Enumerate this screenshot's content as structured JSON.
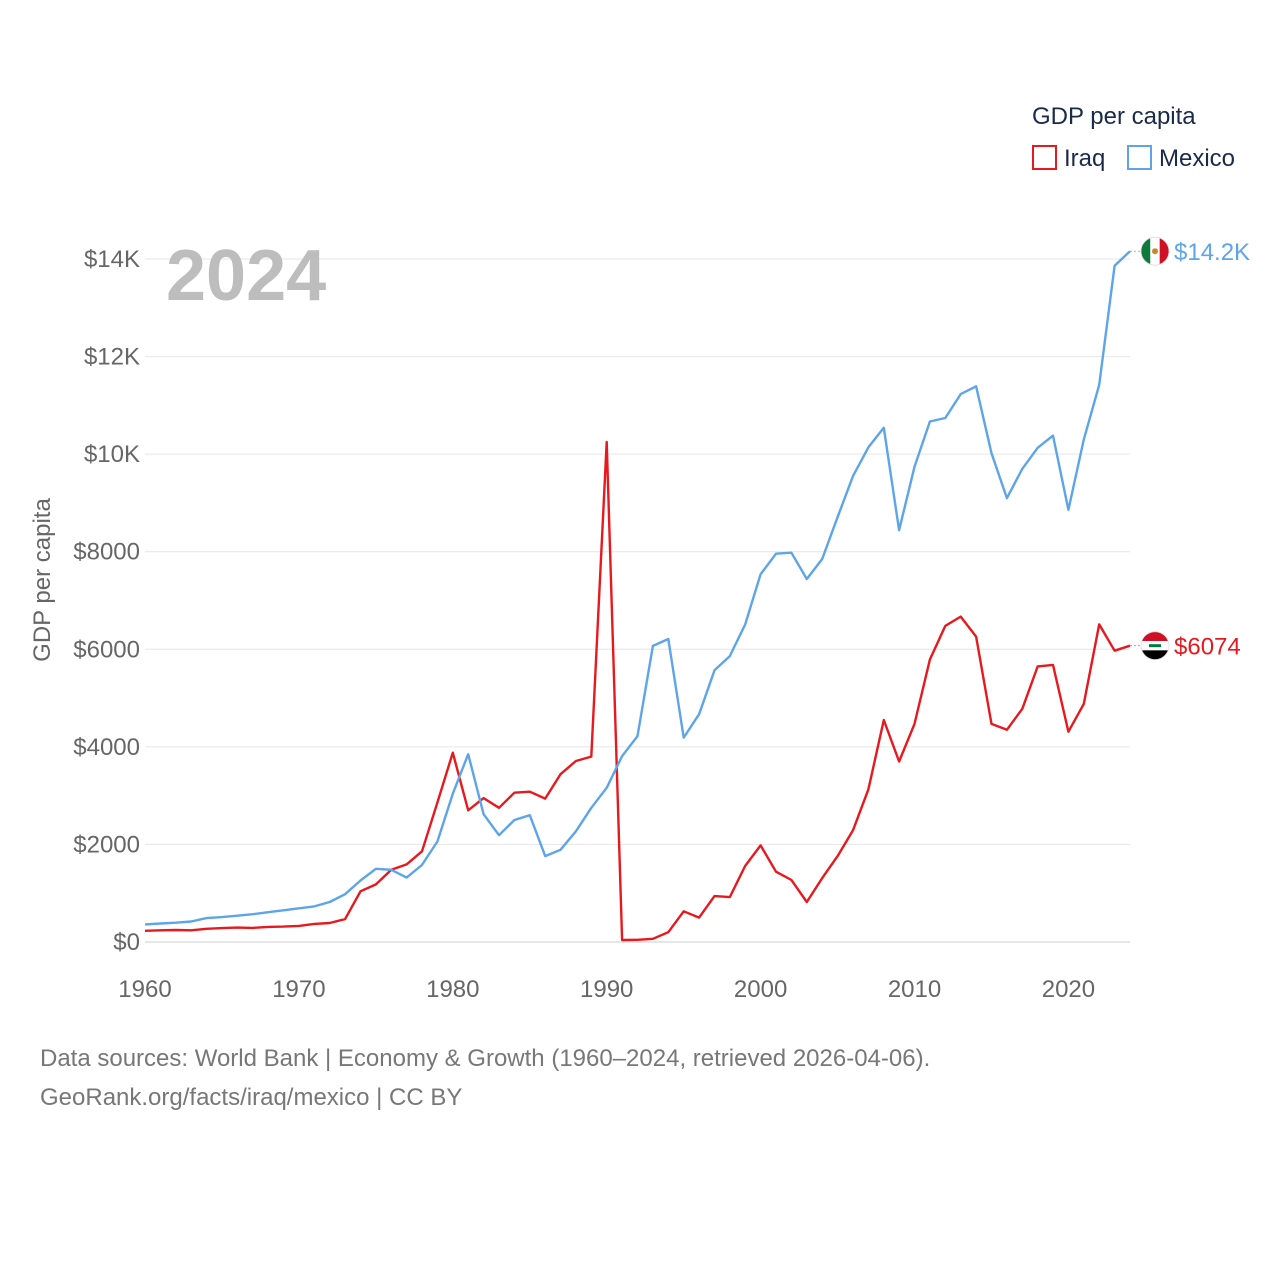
{
  "chart_data": {
    "type": "line",
    "title": "GDP per capita",
    "ylabel": "GDP per capita",
    "xlabel": "",
    "year_label": "2024",
    "xlim": [
      1960,
      2024
    ],
    "ylim": [
      0,
      14500
    ],
    "x_ticks": [
      1960,
      1970,
      1980,
      1990,
      2000,
      2010,
      2020
    ],
    "y_ticks": [
      {
        "value": 0,
        "label": "$0"
      },
      {
        "value": 2000,
        "label": "$2000"
      },
      {
        "value": 4000,
        "label": "$4000"
      },
      {
        "value": 6000,
        "label": "$6000"
      },
      {
        "value": 8000,
        "label": "$8000"
      },
      {
        "value": 10000,
        "label": "$10K"
      },
      {
        "value": 12000,
        "label": "$12K"
      },
      {
        "value": 14000,
        "label": "$14K"
      }
    ],
    "grid": true,
    "legend_position": "top-right",
    "x": [
      1960,
      1961,
      1962,
      1963,
      1964,
      1965,
      1966,
      1967,
      1968,
      1969,
      1970,
      1971,
      1972,
      1973,
      1974,
      1975,
      1976,
      1977,
      1978,
      1979,
      1980,
      1981,
      1982,
      1983,
      1984,
      1985,
      1986,
      1987,
      1988,
      1989,
      1990,
      1991,
      1992,
      1993,
      1994,
      1995,
      1996,
      1997,
      1998,
      1999,
      2000,
      2001,
      2002,
      2003,
      2004,
      2005,
      2006,
      2007,
      2008,
      2009,
      2010,
      2011,
      2012,
      2013,
      2014,
      2015,
      2016,
      2017,
      2018,
      2019,
      2020,
      2021,
      2022,
      2023,
      2024
    ],
    "series": [
      {
        "name": "Iraq",
        "color": "#e8191e",
        "end_label": "$6074",
        "flag": "iraq-flag",
        "values": [
          230,
          240,
          245,
          240,
          270,
          285,
          295,
          290,
          310,
          315,
          330,
          370,
          390,
          470,
          1040,
          1180,
          1480,
          1590,
          1860,
          2860,
          3880,
          2700,
          2950,
          2750,
          3060,
          3080,
          2940,
          3440,
          3710,
          3800,
          10250,
          40,
          45,
          65,
          200,
          630,
          500,
          940,
          920,
          1560,
          1980,
          1440,
          1270,
          820,
          1310,
          1760,
          2290,
          3130,
          4550,
          3700,
          4470,
          5790,
          6480,
          6670,
          6260,
          4470,
          4350,
          4780,
          5650,
          5680,
          4310,
          4880,
          6510,
          5970,
          6074
        ]
      },
      {
        "name": "Mexico",
        "color": "#5da5e8",
        "end_label": "$14.2K",
        "flag": "mexico-flag",
        "values": [
          360,
          380,
          395,
          420,
          490,
          510,
          540,
          570,
          610,
          650,
          690,
          730,
          820,
          980,
          1260,
          1500,
          1480,
          1320,
          1580,
          2060,
          3040,
          3850,
          2620,
          2190,
          2500,
          2600,
          1760,
          1890,
          2270,
          2750,
          3160,
          3810,
          4220,
          6070,
          6210,
          4190,
          4670,
          5570,
          5860,
          6510,
          7540,
          7960,
          7980,
          7440,
          7850,
          8710,
          9550,
          10140,
          10540,
          8440,
          9740,
          10670,
          10740,
          11230,
          11390,
          10020,
          9100,
          9700,
          10130,
          10380,
          8860,
          10300,
          11420,
          13860,
          14160
        ]
      }
    ]
  },
  "source": {
    "line1": "Data sources: World Bank | Economy & Growth (1960–2024, retrieved 2026-04-06).",
    "line2": "GeoRank.org/facts/iraq/mexico | CC BY"
  }
}
